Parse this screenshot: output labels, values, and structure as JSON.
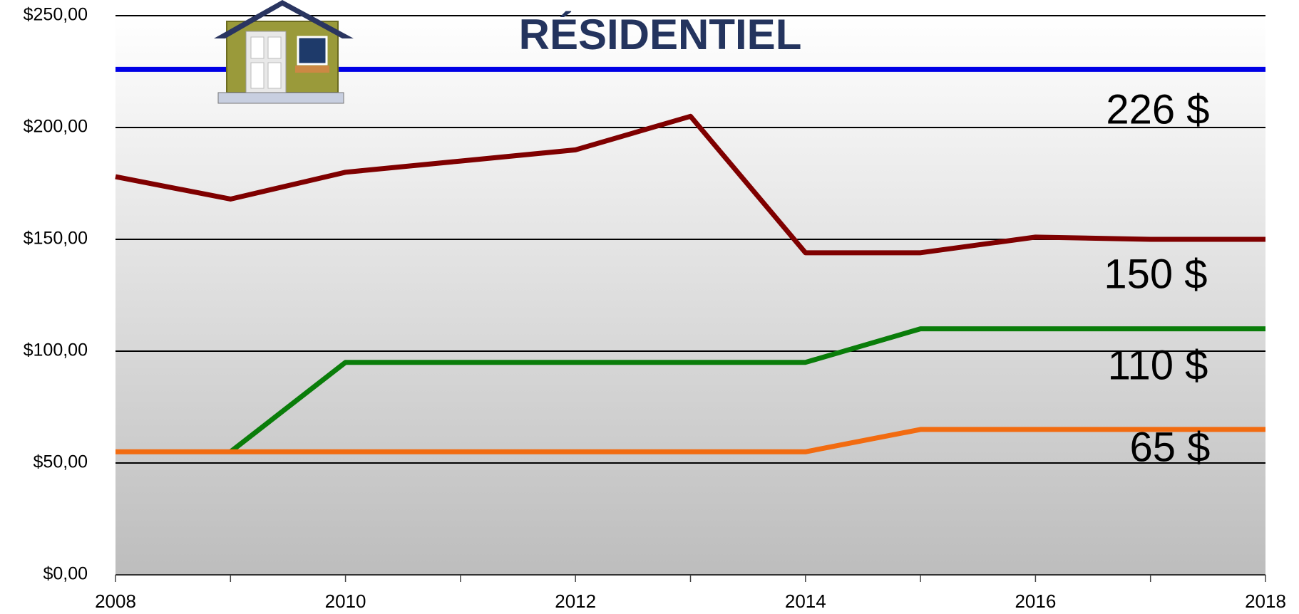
{
  "chart_data": {
    "type": "line",
    "title": "RÉSIDENTIEL",
    "x": [
      2008,
      2009,
      2010,
      2011,
      2012,
      2013,
      2014,
      2015,
      2016,
      2017,
      2018
    ],
    "series": [
      {
        "color": "#0000e6",
        "values": [
          226,
          226,
          226,
          226,
          226,
          226,
          226,
          226,
          226,
          226,
          226
        ]
      },
      {
        "color": "#7f0000",
        "values": [
          178,
          168,
          180,
          185,
          190,
          205,
          144,
          144,
          151,
          150,
          150
        ]
      },
      {
        "color": "#0a7d0a",
        "values": [
          null,
          55,
          95,
          95,
          95,
          95,
          95,
          110,
          110,
          110,
          110
        ]
      },
      {
        "color": "#f26b10",
        "values": [
          55,
          55,
          55,
          55,
          55,
          55,
          55,
          65,
          65,
          65,
          65
        ]
      }
    ],
    "annotations": [
      "226 $",
      "150 $",
      "110 $",
      "65 $"
    ],
    "xlim": [
      2008,
      2018
    ],
    "xticks": [
      2008,
      2010,
      2012,
      2014,
      2016,
      2018
    ],
    "ylim": [
      0,
      250
    ],
    "yticks": [
      {
        "value": 0,
        "label": "$0,00"
      },
      {
        "value": 50,
        "label": "$50,00"
      },
      {
        "value": 100,
        "label": "$100,00"
      },
      {
        "value": 150,
        "label": "$150,00"
      },
      {
        "value": 200,
        "label": "$200,00"
      },
      {
        "value": 250,
        "label": "$250,00"
      }
    ],
    "grid": true
  }
}
